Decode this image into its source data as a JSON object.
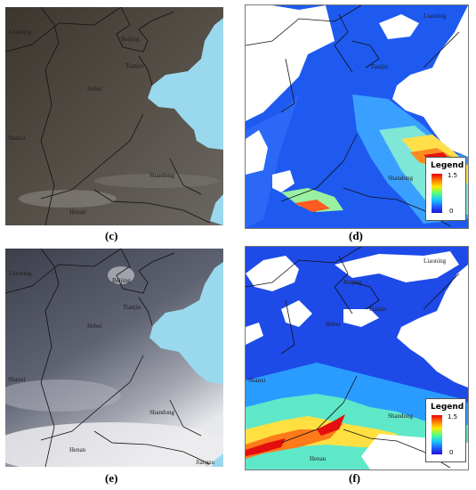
{
  "panels": {
    "c": {
      "caption": "(c)",
      "places": {
        "liaoning": "Liaoning",
        "beijing": "Beijing",
        "tianjin": "Tianjin",
        "hebei": "Hebei",
        "shanxi": "Shanxi",
        "shandong": "Shandong",
        "henan": "Henan"
      }
    },
    "d": {
      "caption": "(d)",
      "places": {
        "liaoning": "Liaoning",
        "tianjin": "Tianjin",
        "shandong": "Shandong"
      },
      "legend": {
        "title": "Legend",
        "max": "1.5",
        "min": "0"
      }
    },
    "e": {
      "caption": "(e)",
      "places": {
        "liaoning": "Liaoning",
        "beijing": "Beijing",
        "tianjin": "Tianjin",
        "hebei": "Hebei",
        "shanxi": "Shanxi",
        "shandong": "Shandong",
        "henan": "Henan",
        "jiangsu": "Jiangsu"
      }
    },
    "f": {
      "caption": "(f)",
      "places": {
        "liaoning": "Liaoning",
        "beijing": "Beijing",
        "tianjin": "Tianjin",
        "hebei": "Hebei",
        "shanxi": "Shanxi",
        "shandong": "Shandong",
        "henan": "Henan"
      },
      "legend": {
        "title": "Legend",
        "max": "1.5",
        "min": "0"
      }
    }
  },
  "colors": {
    "sea": "#9ad8ee",
    "dark_land": "#4c4640",
    "aod_low": "#1f3de0",
    "aod_high": "#e80000"
  }
}
